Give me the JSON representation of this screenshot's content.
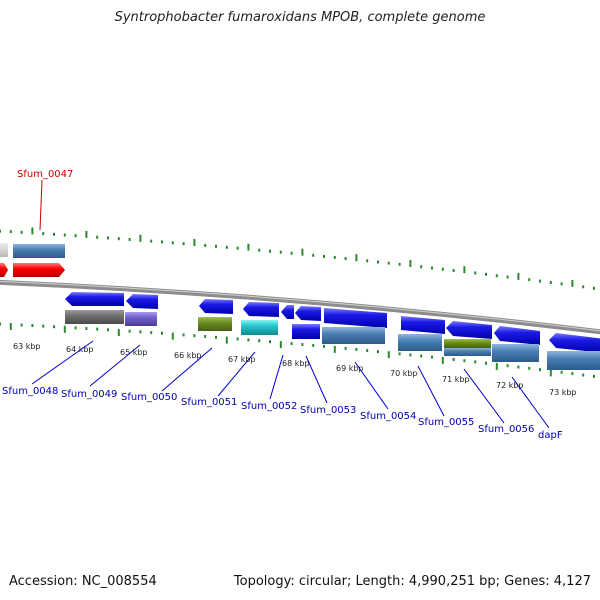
{
  "title": "Syntrophobacter fumaroxidans MPOB, complete genome",
  "footer": {
    "accession": "Accession: NC_008554",
    "stats": "Topology: circular; Length: 4,990,251 bp; Genes: 4,127"
  },
  "colors": {
    "background": "#ffffff",
    "backbone": "#8c8c8c",
    "tick": "#2a8a2a",
    "gene_label": "#0000aa",
    "highlight_label": "#cc0000",
    "forward_gene": "#1a1ae6",
    "reverse_gene": "#0000dd",
    "feature_blue": "#4a7fb5",
    "feature_gray": "#707070",
    "feature_purple": "#7060cc",
    "feature_green": "#6b8e23",
    "feature_cyan": "#22c6cc",
    "highlight_gene": "#ff0000",
    "light_gray": "#cccccc"
  },
  "ruler_labels": [
    "63 kbp",
    "64 kbp",
    "65 kbp",
    "66 kbp",
    "67 kbp",
    "68 kbp",
    "69 kbp",
    "70 kbp",
    "71 kbp",
    "72 kbp",
    "73 kbp"
  ],
  "gene_labels": [
    "Sfum_0047",
    "Sfum_0048",
    "Sfum_0049",
    "Sfum_0050",
    "Sfum_0051",
    "Sfum_0052",
    "Sfum_0053",
    "Sfum_0054",
    "Sfum_0055",
    "Sfum_0056",
    "dapF"
  ]
}
